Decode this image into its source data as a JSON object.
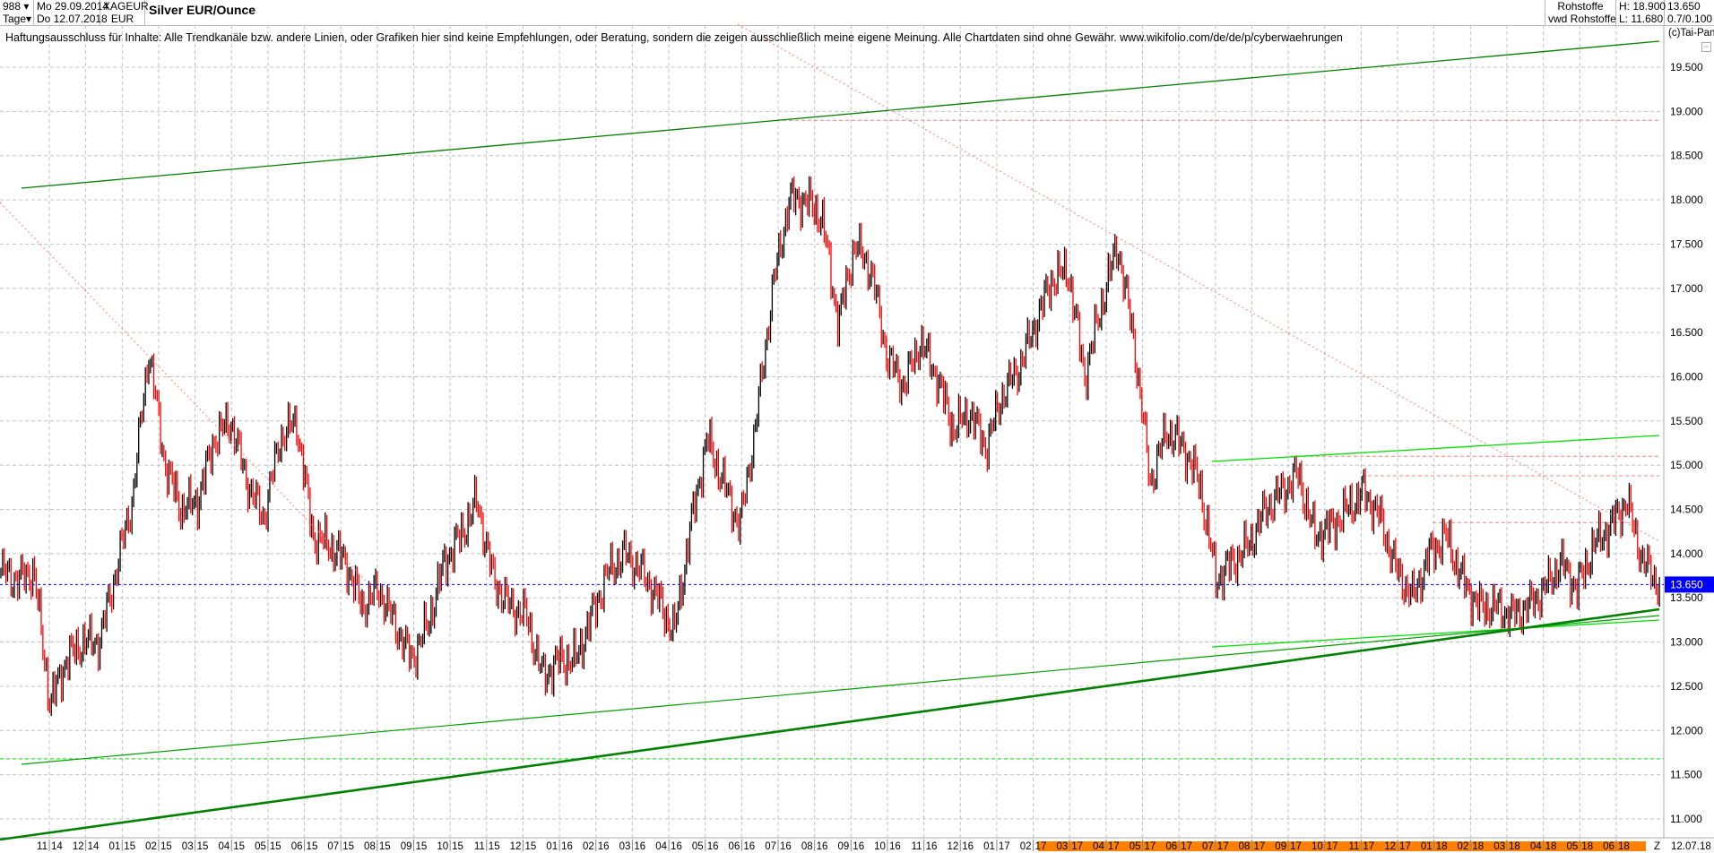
{
  "header": {
    "bar_count": "988",
    "period": "Tage",
    "date_from": "Mo 29.09.2014",
    "date_to": "Do 12.07.2018",
    "symbol": "XAGEUR",
    "currency": "EUR",
    "title": "Silver EUR/Ounce",
    "category": "Rohstoffe",
    "source": "vwd Rohstoffe",
    "high": "H: 18.900",
    "low": "L: 11.680",
    "last": "13.650",
    "change": "0.7/0.100"
  },
  "disclaimer": "Haftungsausschluss für Inhalte: Alle Trendkanäle bzw. andere Linien, oder Grafiken hier sind keine Empfehlungen, oder Beratung, sondern die zeigen ausschließlich meine eigene Meinung. Alle Chartdaten sind ohne Gewähr.  www.wikifolio.com/de/de/p/cyberwaehrungen",
  "copyright": "(c)Tai-Pan",
  "chart_data": {
    "type": "candlestick",
    "title": "Silver EUR/Ounce",
    "start_date": "29.09.2014",
    "end_date": "12.07.2018",
    "ylim": [
      11.0,
      19.7
    ],
    "grid": true,
    "colors": {
      "up": "#000000",
      "down": "#ff0000",
      "last_price": "#0000ff",
      "z_band": "#ff8000"
    },
    "y_ticks": [
      "11.000",
      "11.500",
      "12.000",
      "12.500",
      "13.000",
      "13.500",
      "14.000",
      "14.500",
      "15.000",
      "15.500",
      "16.000",
      "16.500",
      "17.000",
      "17.500",
      "18.000",
      "18.500",
      "19.000",
      "19.500"
    ],
    "x_ticks": [
      "11 14",
      "12 14",
      "01 15",
      "02 15",
      "03 15",
      "04 15",
      "05 15",
      "06 15",
      "07 15",
      "08 15",
      "09 15",
      "10 15",
      "11 15",
      "12 15",
      "01 16",
      "02 16",
      "03 16",
      "04 16",
      "05 16",
      "06 16",
      "07 16",
      "08 16",
      "09 16",
      "10 16",
      "11 16",
      "12 16",
      "01 17",
      "02 17",
      "03 17",
      "04 17",
      "05 17",
      "06 17",
      "07 17",
      "08 17",
      "09 17",
      "10 17",
      "11 17",
      "12 17",
      "01 18",
      "02 18",
      "03 18",
      "04 18",
      "05 18",
      "06 18"
    ],
    "x_end_label": "12.07.18",
    "z_label": "Z",
    "last_price_label": "13.650",
    "last_price": 13.65,
    "approx_closes": [
      13.8,
      13.7,
      13.8,
      12.3,
      12.8,
      13.0,
      13.0,
      13.8,
      14.6,
      16.3,
      15.0,
      14.5,
      14.6,
      15.3,
      15.5,
      14.8,
      14.4,
      15.3,
      15.5,
      14.2,
      14.1,
      13.9,
      13.4,
      13.6,
      13.2,
      12.8,
      13.2,
      13.9,
      14.2,
      14.6,
      13.7,
      13.4,
      13.3,
      12.6,
      12.8,
      12.8,
      13.3,
      13.8,
      14.0,
      13.8,
      13.5,
      13.1,
      14.3,
      15.3,
      14.8,
      14.3,
      15.5,
      17.0,
      18.0,
      18.0,
      17.8,
      16.6,
      17.5,
      17.2,
      16.2,
      15.9,
      16.4,
      16.0,
      15.4,
      15.6,
      15.2,
      15.8,
      16.1,
      16.6,
      17.1,
      17.2,
      16.0,
      16.8,
      17.5,
      16.4,
      14.8,
      15.4,
      15.2,
      14.8,
      13.7,
      13.9,
      14.1,
      14.5,
      14.7,
      14.9,
      14.2,
      14.3,
      14.5,
      14.7,
      14.4,
      13.8,
      13.5,
      14.0,
      14.2,
      13.7,
      13.4,
      13.4,
      13.3,
      13.4,
      13.6,
      13.9,
      13.6,
      14.1,
      14.3,
      14.6,
      13.9,
      13.65
    ],
    "horizontal_levels": [
      {
        "value": 18.9,
        "style": "red-dashed"
      },
      {
        "value": 15.1,
        "style": "red-dashed"
      },
      {
        "value": 14.88,
        "style": "red-dashed"
      },
      {
        "value": 14.35,
        "style": "red-dashed"
      },
      {
        "value": 11.68,
        "style": "green-dashed"
      }
    ]
  }
}
